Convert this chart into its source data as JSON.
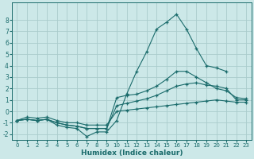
{
  "x": [
    0,
    1,
    2,
    3,
    4,
    5,
    6,
    7,
    8,
    9,
    10,
    11,
    12,
    13,
    14,
    15,
    16,
    17,
    18,
    19,
    20,
    21,
    22,
    23
  ],
  "line_jagged": [
    -0.8,
    -0.7,
    -0.8,
    -0.7,
    -1.2,
    -1.4,
    -1.5,
    -2.2,
    -1.8,
    -1.8,
    -0.8,
    1.5,
    3.5,
    5.2,
    7.2,
    7.8,
    8.5,
    7.2,
    5.5,
    4.0,
    3.8,
    3.5,
    null,
    null
  ],
  "line_max": [
    -0.8,
    -0.7,
    -0.8,
    -0.7,
    -1.0,
    -1.2,
    -1.3,
    -1.5,
    -1.5,
    -1.5,
    1.2,
    1.4,
    1.5,
    1.8,
    2.2,
    2.8,
    3.5,
    3.5,
    3.0,
    2.5,
    2.0,
    1.8,
    1.2,
    1.1
  ],
  "line_mean": [
    -0.8,
    -0.7,
    -0.8,
    -0.7,
    -1.0,
    -1.2,
    -1.3,
    -1.5,
    -1.5,
    -1.5,
    0.5,
    0.7,
    0.9,
    1.1,
    1.4,
    1.8,
    2.2,
    2.4,
    2.5,
    2.3,
    2.2,
    2.0,
    1.0,
    1.0
  ],
  "line_min": [
    -0.8,
    -0.5,
    -0.6,
    -0.5,
    -0.8,
    -1.0,
    -1.0,
    -1.2,
    -1.2,
    -1.2,
    0.0,
    0.1,
    0.2,
    0.3,
    0.4,
    0.5,
    0.6,
    0.7,
    0.8,
    0.9,
    1.0,
    0.9,
    0.8,
    0.8
  ],
  "bg_color": "#cce8e8",
  "line_color": "#1a6b6b",
  "grid_color": "#aacccc",
  "xlabel": "Humidex (Indice chaleur)",
  "ylim": [
    -2.5,
    9.5
  ],
  "xlim": [
    -0.5,
    23.5
  ],
  "yticks": [
    -2,
    -1,
    0,
    1,
    2,
    3,
    4,
    5,
    6,
    7,
    8
  ],
  "xticks": [
    0,
    1,
    2,
    3,
    4,
    5,
    6,
    7,
    8,
    9,
    10,
    11,
    12,
    13,
    14,
    15,
    16,
    17,
    18,
    19,
    20,
    21,
    22,
    23
  ]
}
